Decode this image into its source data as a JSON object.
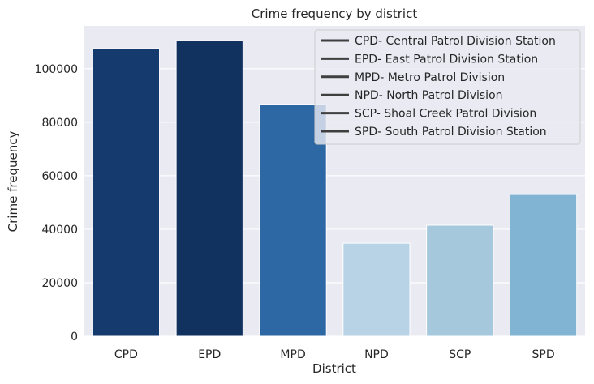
{
  "chart_data": {
    "type": "bar",
    "title": "Crime frequency by district",
    "xlabel": "District",
    "ylabel": "Crime frequency",
    "categories": [
      "CPD",
      "EPD",
      "MPD",
      "NPD",
      "SCP",
      "SPD"
    ],
    "values": [
      107500,
      110500,
      86700,
      34800,
      41500,
      53000
    ],
    "colors": [
      "#143a6e",
      "#11315f",
      "#2e68a4",
      "#b8d3e6",
      "#a5c8dc",
      "#81b3d3"
    ],
    "ylim": [
      0,
      116000
    ],
    "yticks": [
      0,
      20000,
      40000,
      60000,
      80000,
      100000
    ],
    "ytick_labels": [
      "0",
      "20000",
      "40000",
      "60000",
      "80000",
      "100000"
    ],
    "grid": true,
    "legend": {
      "placement": "top-right",
      "entries": [
        "CPD- Central Patrol Division Station",
        "EPD- East Patrol Division Station",
        "MPD- Metro Patrol Division",
        "NPD- North Patrol Division",
        "SCP- Shoal Creek Patrol Division",
        "SPD- South Patrol Division Station"
      ],
      "line_color": "#3f3f3f"
    },
    "background": "#eaeaf2"
  }
}
